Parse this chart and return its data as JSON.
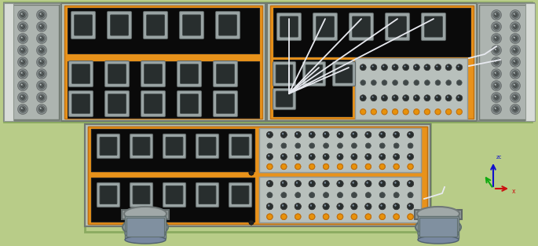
{
  "bg_color": "#b8cc88",
  "orange": "#e8921a",
  "black_panel": "#0a0a0a",
  "gray_frame": "#b0b8b0",
  "gray_side": "#9aa0a0",
  "silver": "#c0c8c4",
  "wire_color": "#e8eaf0",
  "dark_wire": "#d0d0d8",
  "orange_dot": "#e8920a",
  "dark_dot": "#303838",
  "connector_gray": "#9aA4a4",
  "connector_dark": "#282e2e"
}
